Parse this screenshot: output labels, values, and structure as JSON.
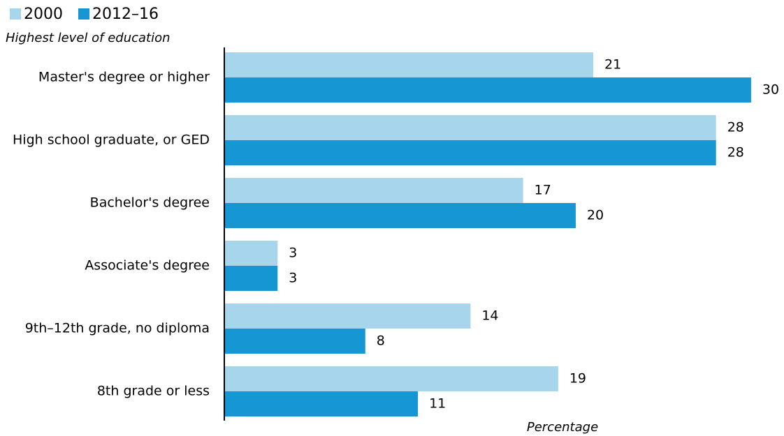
{
  "chart_data": {
    "type": "bar",
    "orientation": "horizontal",
    "y_axis_label": "Highest level of education",
    "x_axis_label": "Percentage",
    "categories": [
      "Master's degree or higher",
      "High school graduate, or GED",
      "Bachelor's degree",
      "Associate's degree",
      "9th–12th grade, no diploma",
      "8th grade or less"
    ],
    "series": [
      {
        "name": "2000",
        "color": "#a6d5ec",
        "values": [
          21,
          28,
          17,
          3,
          14,
          19
        ]
      },
      {
        "name": "2012–16",
        "color": "#1696d2",
        "values": [
          30,
          28,
          20,
          3,
          8,
          11
        ]
      }
    ],
    "xlim": [
      0,
      31
    ],
    "legend": "top-left"
  }
}
